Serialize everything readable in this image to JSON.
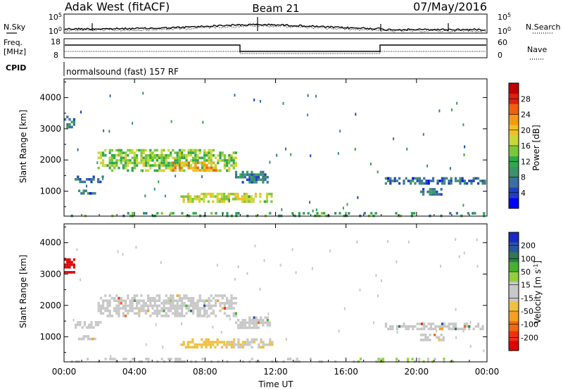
{
  "header": {
    "station": "Adak West (fitACF)",
    "beam": "Beam 21",
    "date": "07/May/2016"
  },
  "status_panels": {
    "nsky": {
      "label": "N.Sky",
      "ticks": [
        "10^5",
        "10^0"
      ],
      "right_label": "N.Search",
      "right_ticks": [
        "10^5",
        "10^0"
      ]
    },
    "freq": {
      "label_line1": "Freq.",
      "label_line2": "[MHz]",
      "ticks": [
        "18",
        "8"
      ],
      "right_label": "Nave",
      "right_ticks": [
        "60",
        "0"
      ]
    },
    "cpid": {
      "label": "CPID",
      "program": "normalsound (fast) 157 RF"
    }
  },
  "chart_data": [
    {
      "type": "heatmap",
      "title": "",
      "ylabel": "Slant Range [km]",
      "xlabel": "",
      "ylim": [
        200,
        4600
      ],
      "yticks": [
        1000,
        2000,
        3000,
        4000
      ],
      "xlim": [
        0,
        24
      ],
      "xticks": [
        "00:00",
        "04:00",
        "08:00",
        "12:00",
        "16:00",
        "20:00",
        "00:00"
      ],
      "colorbar": {
        "label": "Power [dB]",
        "ticks": [
          "4",
          "8",
          "12",
          "16",
          "20",
          "24",
          "28"
        ],
        "range": [
          0,
          30
        ],
        "colors": [
          "#0000ff",
          "#1f3fc0",
          "#3a6fa0",
          "#3e8f6a",
          "#2ea84a",
          "#7ac83a",
          "#c8d838",
          "#f0c020",
          "#f59a10",
          "#f06010",
          "#e02010",
          "#c00000"
        ]
      },
      "features": [
        {
          "t0": 0.0,
          "t1": 0.6,
          "r0": 3050,
          "r1": 3500,
          "value": 8
        },
        {
          "t0": 1.9,
          "t1": 9.8,
          "r0": 1700,
          "r1": 2350,
          "value": 14
        },
        {
          "t0": 6.0,
          "t1": 8.6,
          "r0": 1650,
          "r1": 1950,
          "value": 20
        },
        {
          "t0": 9.7,
          "t1": 11.7,
          "r0": 1300,
          "r1": 1650,
          "value": 8
        },
        {
          "t0": 0.6,
          "t1": 2.2,
          "r0": 1300,
          "r1": 1500,
          "value": 6
        },
        {
          "t0": 0.8,
          "t1": 1.8,
          "r0": 900,
          "r1": 1050,
          "value": 6
        },
        {
          "t0": 6.6,
          "t1": 11.8,
          "r0": 650,
          "r1": 950,
          "value": 16
        },
        {
          "t0": 18.2,
          "t1": 23.9,
          "r0": 1250,
          "r1": 1450,
          "value": 6
        },
        {
          "t0": 20.2,
          "t1": 21.6,
          "r0": 880,
          "r1": 1100,
          "value": 7
        },
        {
          "t0": 0.0,
          "t1": 23.9,
          "r0": 200,
          "r1": 330,
          "value": 10
        }
      ]
    },
    {
      "type": "heatmap",
      "title": "",
      "ylabel": "Slant Range [km]",
      "xlabel": "Time UT",
      "ylim": [
        200,
        4600
      ],
      "yticks": [
        1000,
        2000,
        3000,
        4000
      ],
      "xlim": [
        0,
        24
      ],
      "xticks": [
        "00:00",
        "04:00",
        "08:00",
        "12:00",
        "16:00",
        "20:00",
        "00:00"
      ],
      "colorbar": {
        "label": "Velocity [m s^-1]",
        "ticks": [
          "200",
          "100",
          "50",
          "15",
          "-15",
          "-50",
          "-100",
          "-200"
        ],
        "range": [
          -250,
          250
        ],
        "colors": [
          "#e00000",
          "#f03010",
          "#f06a10",
          "#f5a020",
          "#f0c040",
          "#c8c8c8",
          "#c8c8c8",
          "#90d040",
          "#48b030",
          "#2e7a50",
          "#2a55a0",
          "#1a2ac8"
        ]
      },
      "features": [
        {
          "t0": 0.0,
          "t1": 0.6,
          "r0": 3050,
          "r1": 3500,
          "value": -220
        },
        {
          "t0": 1.9,
          "t1": 9.8,
          "r0": 1700,
          "r1": 2350,
          "value": 0
        },
        {
          "t0": 9.7,
          "t1": 11.7,
          "r0": 1300,
          "r1": 1650,
          "value": 0
        },
        {
          "t0": 0.6,
          "t1": 2.2,
          "r0": 1300,
          "r1": 1500,
          "value": 0
        },
        {
          "t0": 0.8,
          "t1": 1.8,
          "r0": 900,
          "r1": 1050,
          "value": 0
        },
        {
          "t0": 6.6,
          "t1": 9.2,
          "r0": 650,
          "r1": 950,
          "value": -60
        },
        {
          "t0": 9.2,
          "t1": 11.8,
          "r0": 650,
          "r1": 950,
          "value": -40
        },
        {
          "t0": 18.2,
          "t1": 23.9,
          "r0": 1250,
          "r1": 1450,
          "value": 0
        },
        {
          "t0": 20.2,
          "t1": 21.6,
          "r0": 880,
          "r1": 1100,
          "value": 0
        },
        {
          "t0": 16.0,
          "t1": 22.5,
          "r0": 200,
          "r1": 330,
          "value": 40
        },
        {
          "t0": 0.0,
          "t1": 16.0,
          "r0": 200,
          "r1": 330,
          "value": -20
        }
      ]
    }
  ]
}
